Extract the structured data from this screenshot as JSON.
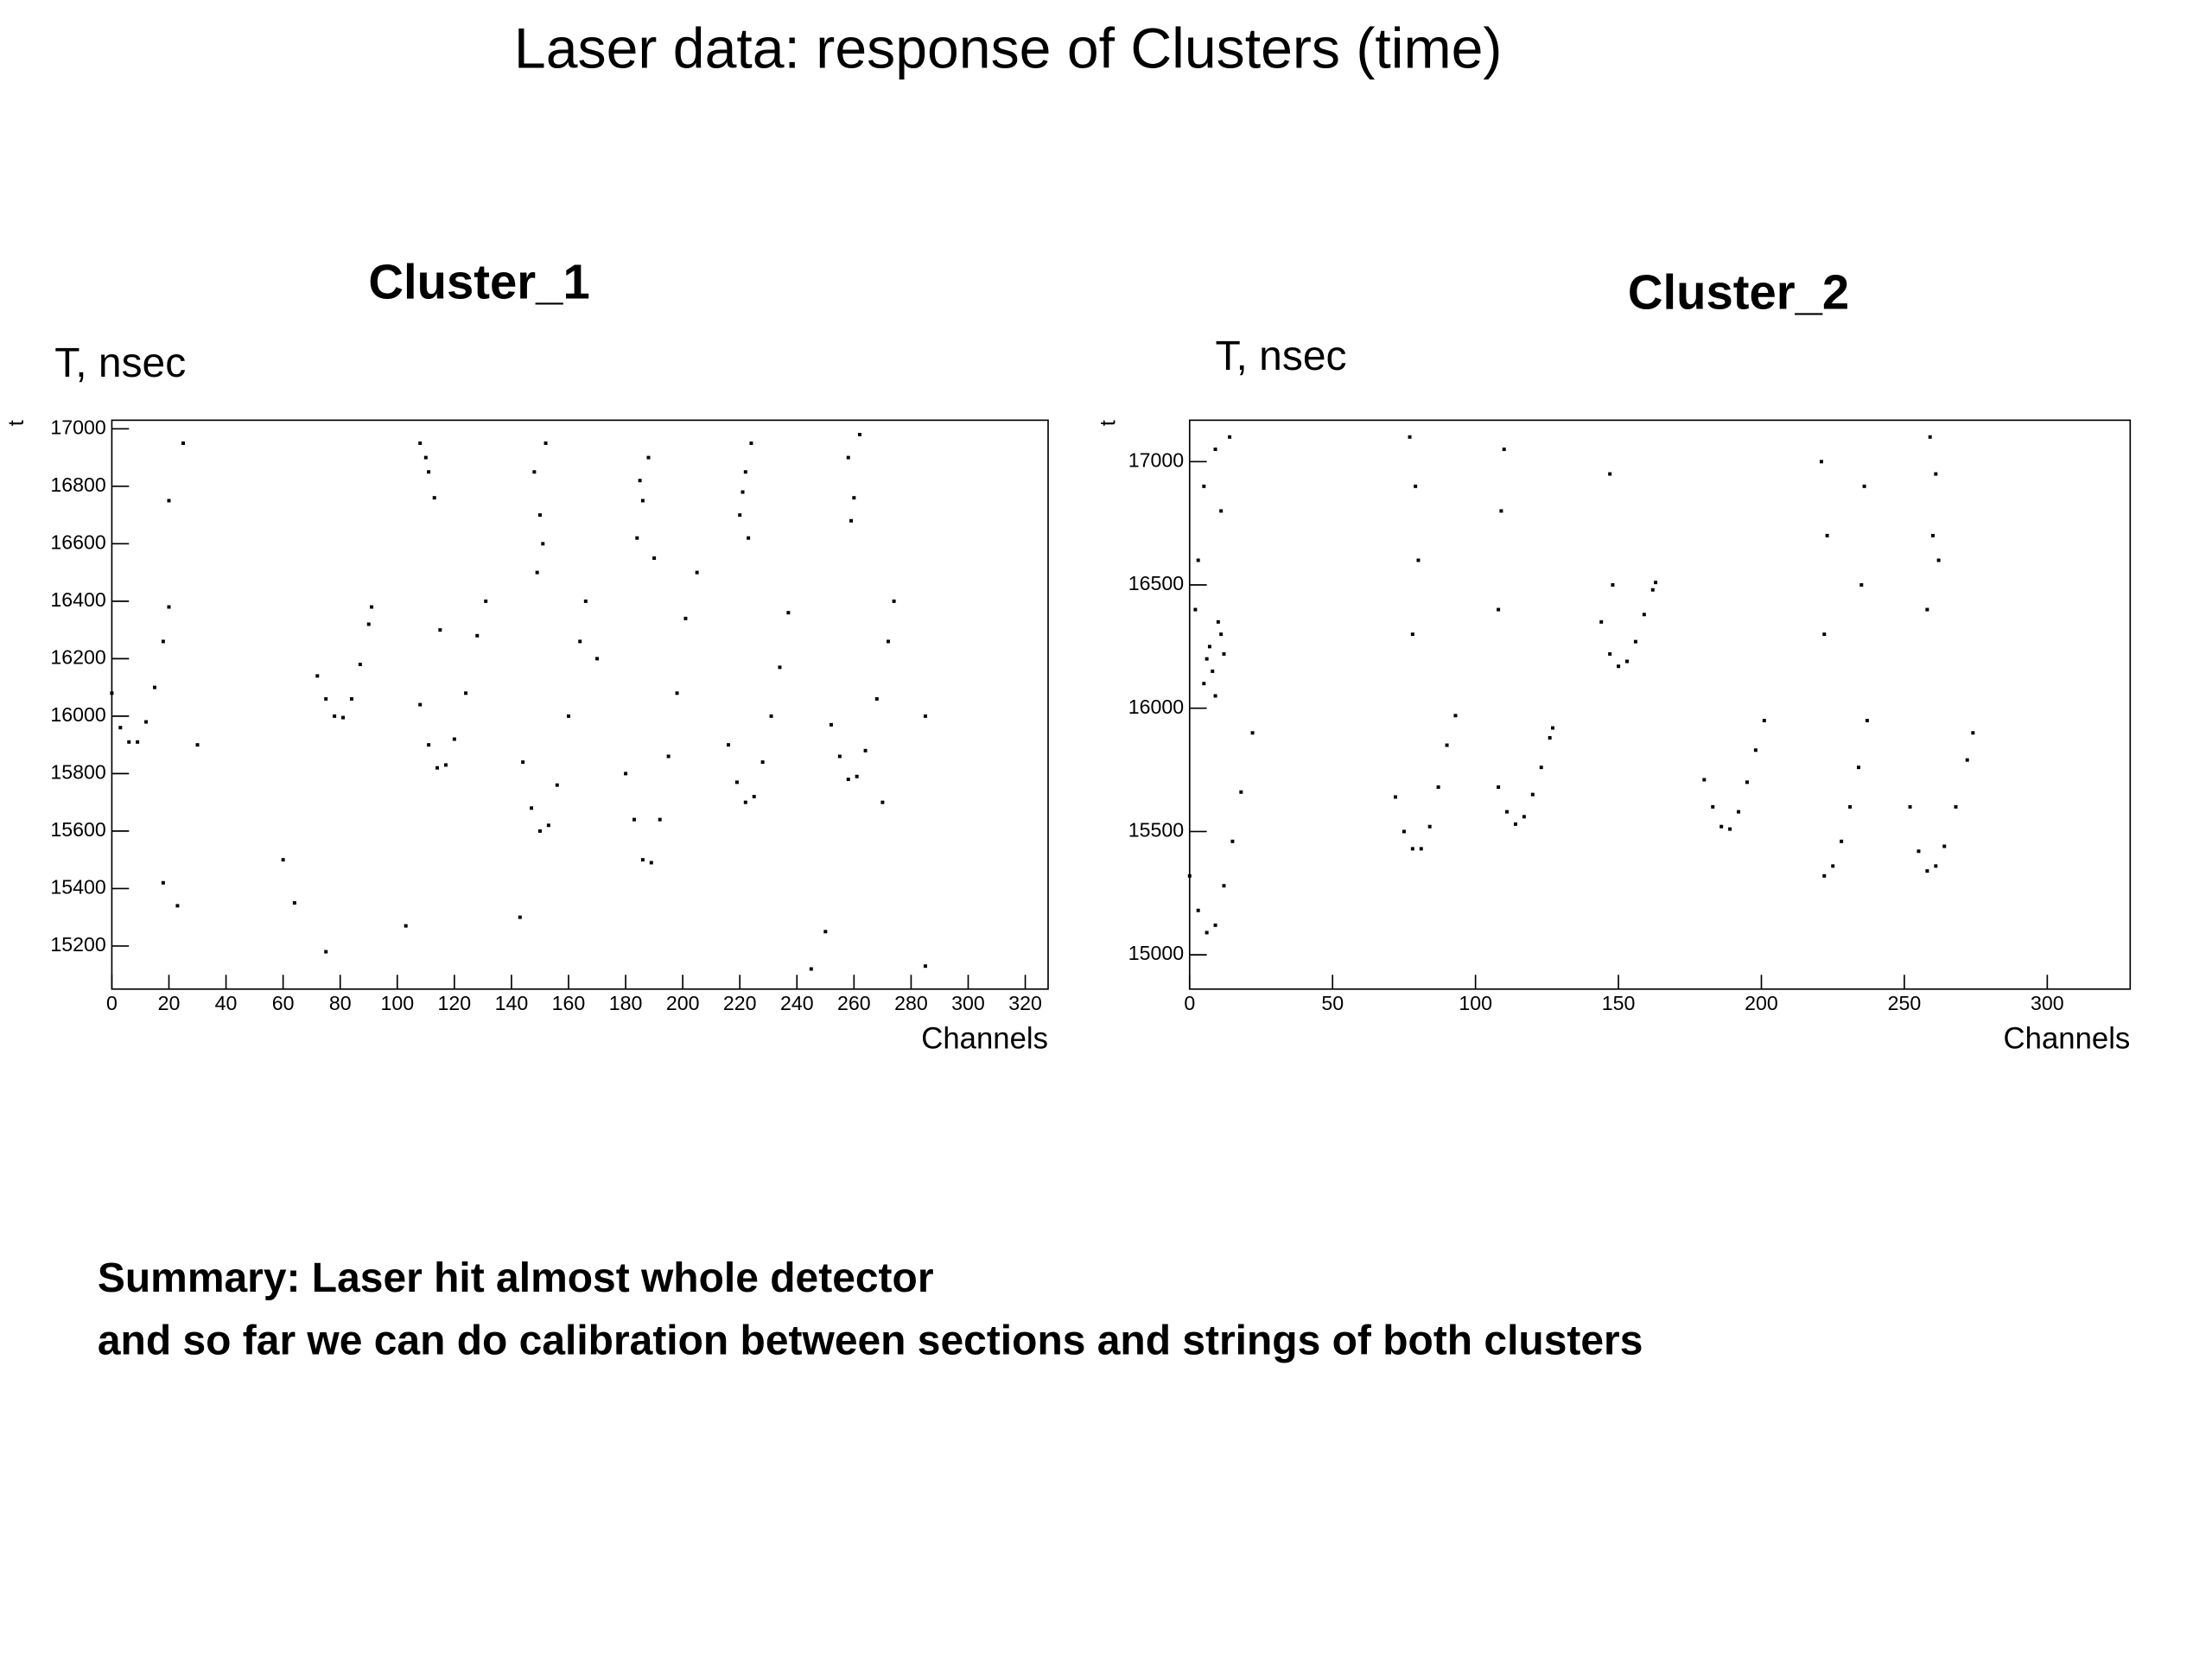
{
  "title": "Laser data: response of Clusters (time)",
  "summary": [
    "Summary: Laser hit almost whole detector",
    "and so far we can do calibration between sections and strings of both clusters"
  ],
  "chart_data": [
    {
      "type": "scatter",
      "title": "Cluster_1",
      "annotation": "T, nsec",
      "xlabel": "Channels",
      "ylabel": "t",
      "color": "#000000",
      "xlim": [
        0,
        328
      ],
      "ylim": [
        15050,
        17030
      ],
      "xticks": [
        0,
        20,
        40,
        60,
        80,
        100,
        120,
        140,
        160,
        180,
        200,
        220,
        240,
        260,
        280,
        300,
        320
      ],
      "yticks": [
        15200,
        15400,
        15600,
        15800,
        16000,
        16200,
        16400,
        16600,
        16800,
        17000
      ],
      "x": [
        0,
        3,
        6,
        9,
        12,
        15,
        18,
        20,
        72,
        75,
        78,
        81,
        84,
        87,
        90,
        91,
        108,
        111,
        114,
        117,
        120,
        124,
        128,
        131,
        144,
        147,
        150,
        153,
        156,
        160,
        164,
        166,
        180,
        183,
        186,
        189,
        192,
        195,
        198,
        201,
        216,
        219,
        222,
        225,
        228,
        231,
        234,
        237,
        252,
        255,
        258,
        261,
        264,
        268,
        272,
        274,
        108,
        111,
        113,
        110,
        150,
        148,
        152,
        151,
        149,
        184,
        186,
        188,
        190,
        185,
        220,
        222,
        224,
        221,
        223,
        258,
        260,
        262,
        259,
        20,
        25,
        18,
        23,
        64,
        75,
        103,
        250,
        245,
        285,
        30,
        60,
        270,
        285,
        143,
        115,
        170,
        205
      ],
      "values": [
        16080,
        15960,
        15910,
        15910,
        15980,
        16100,
        16260,
        16380,
        16140,
        16060,
        16000,
        15995,
        16060,
        16180,
        16320,
        16380,
        16040,
        15900,
        15820,
        15830,
        15920,
        16080,
        16280,
        16400,
        15840,
        15680,
        15600,
        15620,
        15760,
        16000,
        16260,
        16400,
        15800,
        15640,
        15500,
        15490,
        15640,
        15860,
        16080,
        16340,
        15900,
        15770,
        15700,
        15720,
        15840,
        16000,
        16170,
        16360,
        15970,
        15860,
        15780,
        15790,
        15880,
        16060,
        16260,
        16400,
        16950,
        16850,
        16760,
        16900,
        16700,
        16850,
        16950,
        16600,
        16500,
        16620,
        16750,
        16900,
        16550,
        16820,
        16700,
        16850,
        16950,
        16780,
        16620,
        16900,
        16760,
        16980,
        16680,
        16750,
        16950,
        15420,
        15340,
        15350,
        15180,
        15270,
        15250,
        15120,
        15130,
        15900,
        15500,
        15700,
        16000,
        15300,
        16300,
        16200,
        16500
      ]
    },
    {
      "type": "scatter",
      "title": "Cluster_2",
      "annotation": "T, nsec",
      "xlabel": "Channels",
      "ylabel": "t",
      "color": "#000000",
      "xlim": [
        0,
        329
      ],
      "ylim": [
        14861,
        17168
      ],
      "xticks": [
        0,
        50,
        100,
        150,
        200,
        250,
        300
      ],
      "yticks": [
        15000,
        15500,
        16000,
        16500,
        17000
      ],
      "x": [
        0,
        3,
        6,
        9,
        12,
        15,
        18,
        22,
        72,
        75,
        78,
        81,
        84,
        87,
        90,
        93,
        108,
        111,
        114,
        117,
        120,
        123,
        126,
        127,
        144,
        147,
        150,
        153,
        156,
        159,
        162,
        163,
        180,
        183,
        186,
        189,
        192,
        195,
        198,
        201,
        222,
        225,
        228,
        231,
        234,
        237,
        252,
        255,
        258,
        261,
        264,
        268,
        272,
        274,
        5,
        7,
        9,
        11,
        6,
        8,
        10,
        12,
        3,
        5,
        9,
        11,
        2,
        14,
        78,
        80,
        79,
        77,
        108,
        109,
        110,
        148,
        147,
        222,
        223,
        221,
        235,
        236,
        258,
        260,
        261,
        259,
        262
      ],
      "values": [
        15320,
        15180,
        15090,
        15120,
        15280,
        15460,
        15660,
        15900,
        15640,
        15500,
        15430,
        15430,
        15520,
        15680,
        15850,
        15970,
        15680,
        15580,
        15530,
        15560,
        15650,
        15760,
        15880,
        15920,
        16350,
        16220,
        16170,
        16190,
        16270,
        16380,
        16480,
        16510,
        15710,
        15600,
        15520,
        15510,
        15580,
        15700,
        15830,
        15950,
        15320,
        15360,
        15460,
        15600,
        15760,
        15950,
        15600,
        15420,
        15340,
        15360,
        15440,
        15600,
        15790,
        15900,
        16100,
        16250,
        16050,
        16300,
        16200,
        16150,
        16350,
        16220,
        16600,
        16900,
        17050,
        16800,
        16400,
        17100,
        16300,
        16600,
        16900,
        17100,
        16400,
        16800,
        17050,
        16500,
        16950,
        16300,
        16700,
        17000,
        16500,
        16900,
        16400,
        16700,
        16950,
        17100,
        16600
      ]
    }
  ]
}
